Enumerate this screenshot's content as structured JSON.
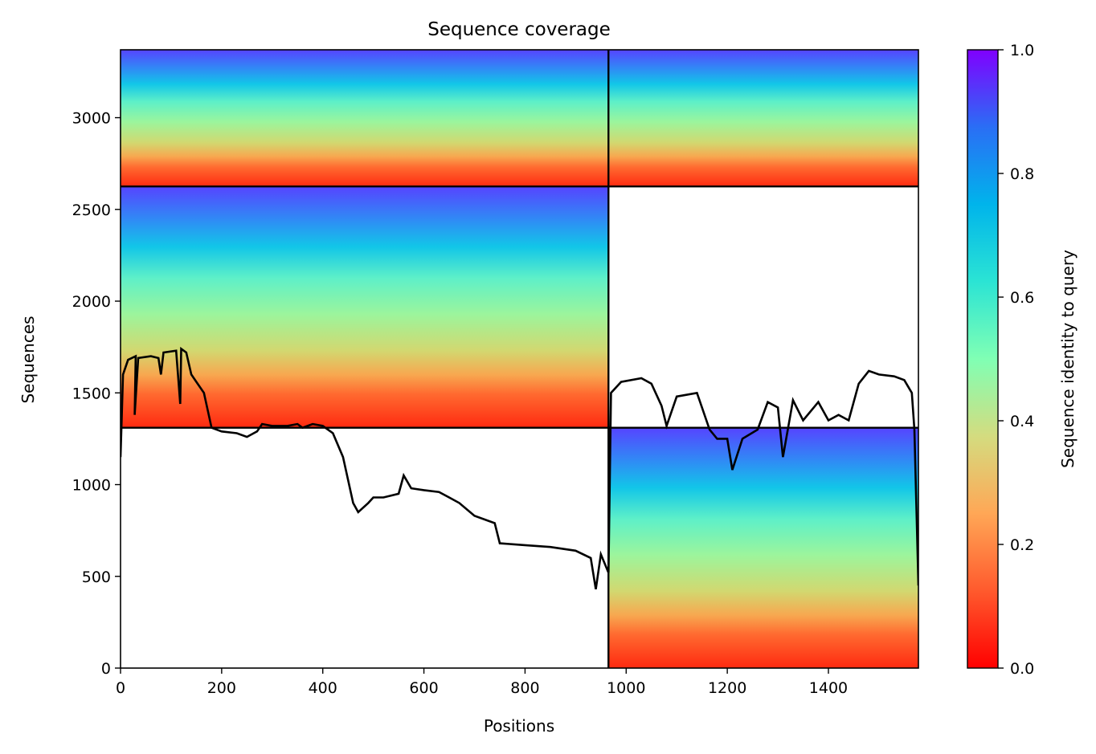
{
  "chart_data": {
    "type": "heatmap",
    "title": "Sequence coverage",
    "xlabel": "Positions",
    "ylabel": "Sequences",
    "xlim": [
      0,
      1578
    ],
    "ylim": [
      0,
      3370
    ],
    "xticks": [
      0,
      200,
      400,
      600,
      800,
      1000,
      1200,
      1400
    ],
    "yticks": [
      0,
      500,
      1000,
      1500,
      2000,
      2500,
      3000
    ],
    "grid": false,
    "colorbar": {
      "label": "Sequence identity to query",
      "range": [
        0,
        1
      ],
      "ticks": [
        "0.0",
        "0.2",
        "0.4",
        "0.6",
        "0.8",
        "1.0"
      ],
      "colormap": "rainbow"
    },
    "divider_lines": {
      "x": [
        965
      ],
      "y": [
        1310,
        2625
      ]
    },
    "blocks": [
      {
        "x0": 0,
        "x1": 965,
        "y0": 2625,
        "y1": 3370
      },
      {
        "x0": 965,
        "x1": 1578,
        "y0": 2625,
        "y1": 3370
      },
      {
        "x0": 0,
        "x1": 965,
        "y0": 1310,
        "y1": 2625
      },
      {
        "x0": 965,
        "x1": 1578,
        "y0": 0,
        "y1": 1310
      }
    ],
    "coverage_line": {
      "color": "#000000",
      "x": [
        0,
        5,
        15,
        30,
        28,
        35,
        60,
        75,
        80,
        85,
        110,
        118,
        120,
        130,
        140,
        150,
        165,
        180,
        200,
        230,
        250,
        270,
        280,
        300,
        330,
        350,
        360,
        380,
        400,
        420,
        440,
        460,
        470,
        490,
        500,
        520,
        550,
        560,
        575,
        600,
        630,
        650,
        670,
        700,
        740,
        750,
        800,
        850,
        900,
        930,
        940,
        950,
        965,
        970,
        990,
        1030,
        1050,
        1070,
        1080,
        1100,
        1140,
        1165,
        1180,
        1200,
        1210,
        1230,
        1260,
        1280,
        1300,
        1310,
        1330,
        1350,
        1380,
        1400,
        1420,
        1440,
        1460,
        1480,
        1500,
        1530,
        1550,
        1565,
        1570,
        1578
      ],
      "y": [
        1150,
        1600,
        1680,
        1700,
        1380,
        1690,
        1700,
        1690,
        1600,
        1720,
        1730,
        1440,
        1740,
        1720,
        1600,
        1560,
        1500,
        1310,
        1290,
        1280,
        1260,
        1290,
        1330,
        1320,
        1320,
        1330,
        1310,
        1330,
        1320,
        1280,
        1150,
        900,
        850,
        900,
        930,
        930,
        950,
        1050,
        980,
        970,
        960,
        930,
        900,
        830,
        790,
        680,
        670,
        660,
        640,
        600,
        430,
        620,
        520,
        1500,
        1560,
        1580,
        1550,
        1430,
        1320,
        1480,
        1500,
        1300,
        1250,
        1250,
        1080,
        1250,
        1300,
        1450,
        1420,
        1150,
        1460,
        1350,
        1450,
        1350,
        1380,
        1350,
        1550,
        1620,
        1600,
        1590,
        1570,
        1500,
        1300,
        450
      ]
    }
  }
}
